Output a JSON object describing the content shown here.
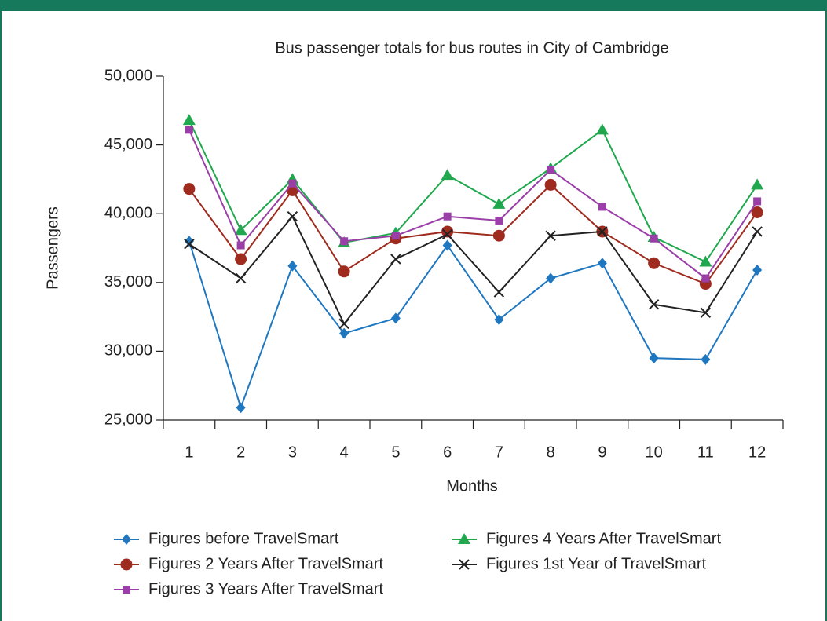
{
  "chart_data": {
    "type": "line",
    "title": "Bus passenger totals for bus routes in City of Cambridge",
    "x_label": "Months",
    "y_label": "Passengers",
    "categories": [
      "1",
      "2",
      "3",
      "4",
      "5",
      "6",
      "7",
      "8",
      "9",
      "10",
      "11",
      "12"
    ],
    "ylim": [
      25000,
      50000
    ],
    "yticks": [
      {
        "value": 25000,
        "label": "25,000"
      },
      {
        "value": 30000,
        "label": "30,000"
      },
      {
        "value": 35000,
        "label": "35,000"
      },
      {
        "value": 40000,
        "label": "40,000"
      },
      {
        "value": 45000,
        "label": "45,000"
      },
      {
        "value": 50000,
        "label": "50,000"
      }
    ],
    "grid": false,
    "series": [
      {
        "name": "Figures before TravelSmart",
        "color": "#1f77c0",
        "marker": "diamond",
        "values": [
          38000,
          25900,
          36200,
          31300,
          32400,
          37700,
          32300,
          35300,
          36400,
          29500,
          29400,
          35900
        ]
      },
      {
        "name": "Figures 4 Years After TravelSmart",
        "color": "#1fa84d",
        "marker": "triangle",
        "values": [
          46800,
          38800,
          42500,
          37900,
          38600,
          42800,
          40700,
          43300,
          46100,
          38300,
          36500,
          42100
        ]
      },
      {
        "name": "Figures 2 Years After TravelSmart",
        "color": "#9e2b1e",
        "marker": "circle",
        "values": [
          41800,
          36700,
          41700,
          35800,
          38200,
          38700,
          38400,
          42100,
          38700,
          36400,
          34900,
          40100
        ]
      },
      {
        "name": "Figures 1st Year of TravelSmart",
        "color": "#222222",
        "marker": "x",
        "values": [
          37800,
          35300,
          39800,
          32000,
          36700,
          38500,
          34300,
          38400,
          38700,
          33400,
          32800,
          38700
        ]
      },
      {
        "name": "Figures 3 Years After TravelSmart",
        "color": "#9a3ea8",
        "marker": "square",
        "values": [
          46100,
          37700,
          42200,
          38000,
          38400,
          39800,
          39500,
          43200,
          40500,
          38200,
          35300,
          40900
        ]
      }
    ]
  }
}
